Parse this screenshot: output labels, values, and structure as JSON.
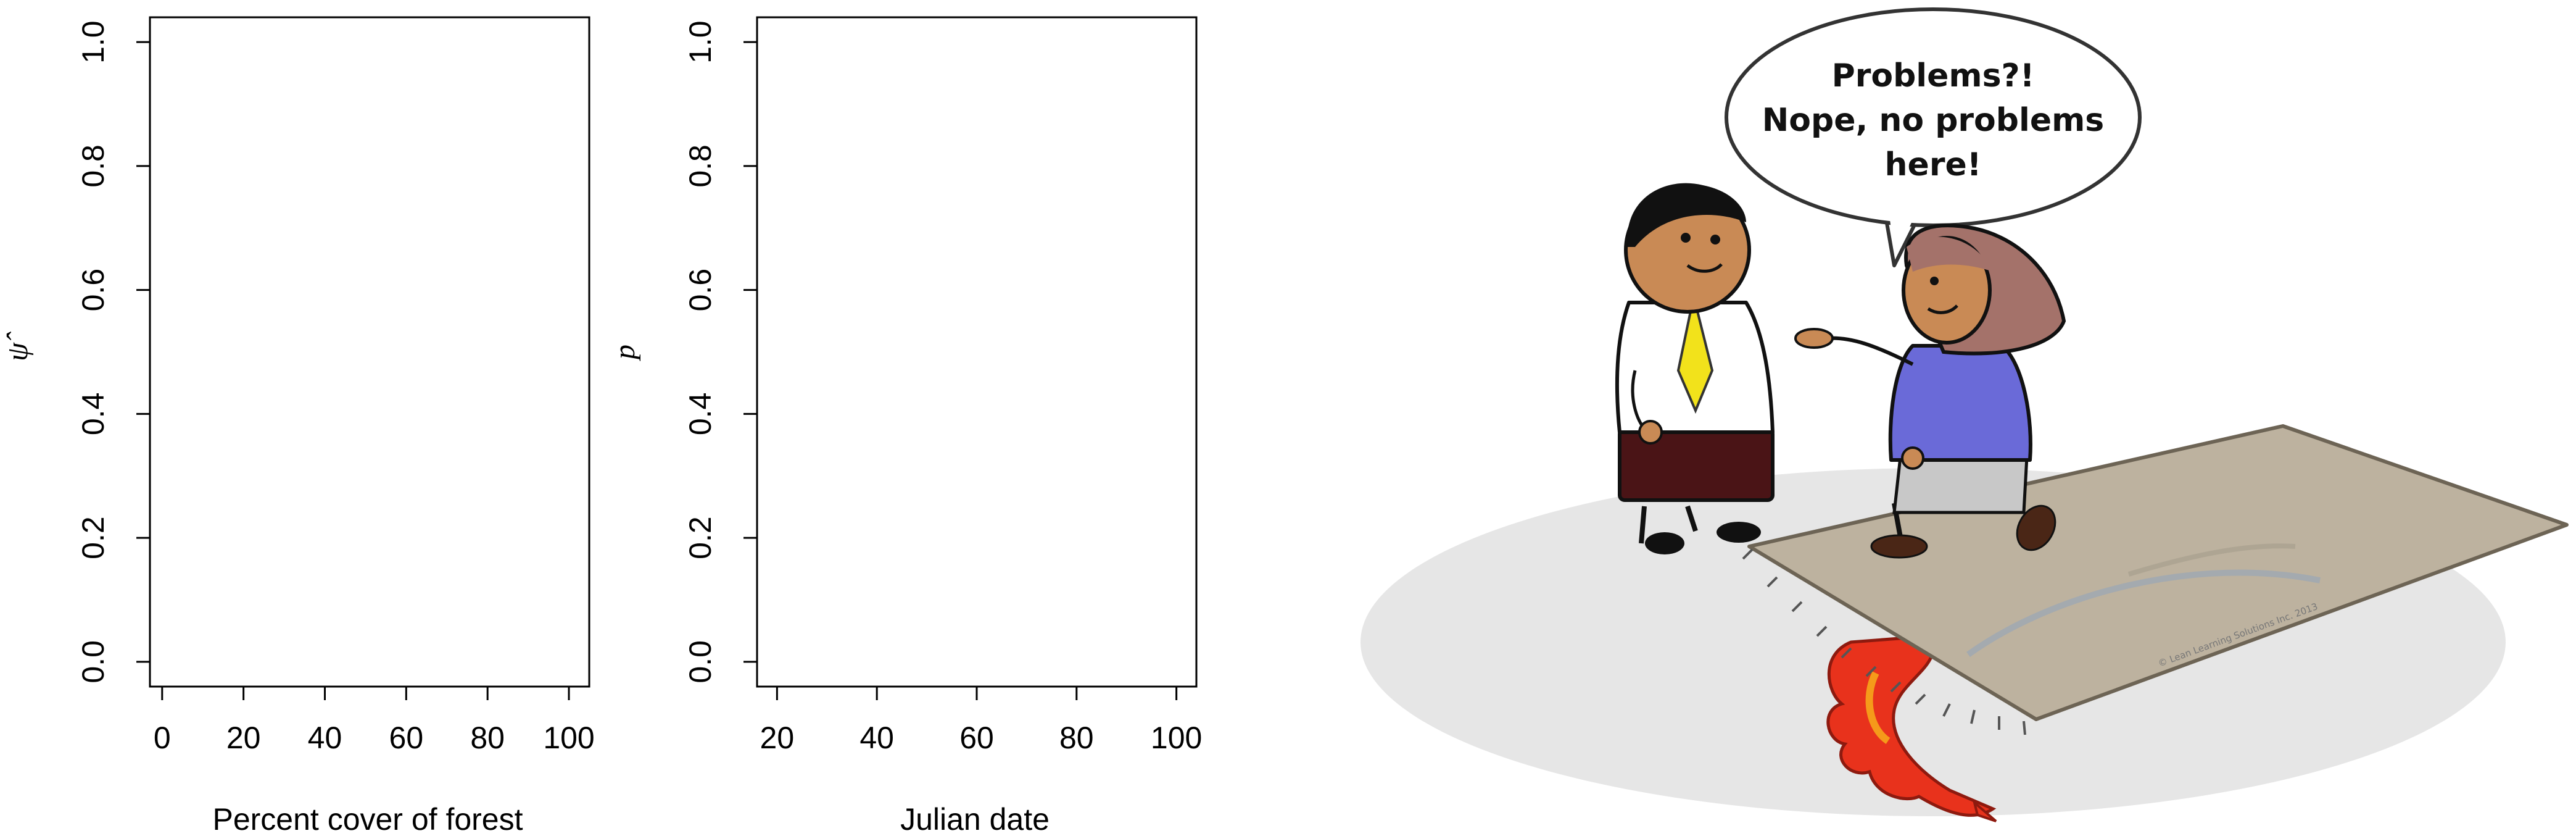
{
  "chart_data": [
    {
      "type": "scatter",
      "title": "",
      "xlabel": "Percent cover of forest",
      "ylabel": "ψ̂",
      "xlim": [
        -3,
        105
      ],
      "ylim": [
        -0.04,
        1.04
      ],
      "xticks": [
        0,
        20,
        40,
        60,
        80,
        100
      ],
      "yticks": [
        0.0,
        0.2,
        0.4,
        0.6,
        0.8,
        1.0
      ],
      "xtick_labels": [
        "0",
        "20",
        "40",
        "60",
        "80",
        "100"
      ],
      "ytick_labels": [
        "0.0",
        "0.2",
        "0.4",
        "0.6",
        "0.8",
        "1.0"
      ],
      "series": [],
      "grid": false
    },
    {
      "type": "scatter",
      "title": "",
      "xlabel": "Julian date",
      "ylabel": "p",
      "xlim": [
        16,
        104
      ],
      "ylim": [
        -0.04,
        1.04
      ],
      "xticks": [
        20,
        40,
        60,
        80,
        100
      ],
      "yticks": [
        0.0,
        0.2,
        0.4,
        0.6,
        0.8,
        1.0
      ],
      "xtick_labels": [
        "20",
        "40",
        "60",
        "80",
        "100"
      ],
      "ytick_labels": [
        "0.0",
        "0.2",
        "0.4",
        "0.6",
        "0.8",
        "1.0"
      ],
      "series": [],
      "grid": false
    }
  ],
  "cartoon": {
    "speech_lines": [
      "Problems?!",
      "Nope, no problems",
      "here!"
    ],
    "copyright": "© Lean Learning Solutions Inc. 2013",
    "colors": {
      "rug": "#bdb29f",
      "floor": "#e6e6e6",
      "tie": "#f2e21b",
      "trousers": "#4a1416",
      "skin": "#c98a55",
      "hair_woman": "#a4726a",
      "sweater": "#6a6ad8",
      "skirt": "#c8c8c8",
      "dragon": "#e8321c"
    }
  }
}
